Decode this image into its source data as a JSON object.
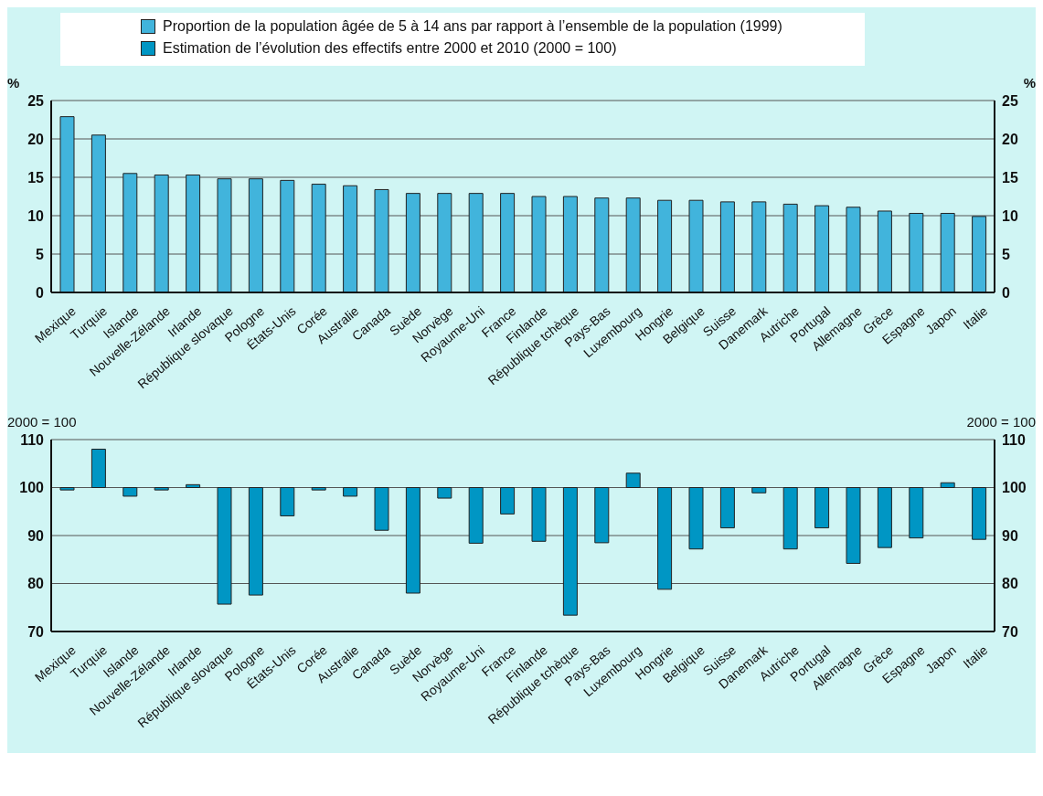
{
  "chart_data": [
    {
      "type": "bar",
      "ylabel": "%",
      "y2label": "%",
      "legend": "top",
      "grid": "y",
      "categories": [
        "Mexique",
        "Turquie",
        "Islande",
        "Nouvelle-Zélande",
        "Irlande",
        "République slovaque",
        "Pologne",
        "États-Unis",
        "Corée",
        "Australie",
        "Canada",
        "Suède",
        "Norvège",
        "Royaume-Uni",
        "France",
        "Finlande",
        "République tchèque",
        "Pays-Bas",
        "Luxembourg",
        "Hongrie",
        "Belgique",
        "Suisse",
        "Danemark",
        "Autriche",
        "Portugal",
        "Allemagne",
        "Grèce",
        "Espagne",
        "Japon",
        "Italie"
      ],
      "series": [
        {
          "name": "Proportion de la population âgée de 5 à 14 ans par rapport à l’ensemble de la population (1999)",
          "color": "#41b4dc",
          "values": [
            22.9,
            20.5,
            15.5,
            15.3,
            15.3,
            14.8,
            14.8,
            14.6,
            14.1,
            13.9,
            13.4,
            12.9,
            12.9,
            12.9,
            12.9,
            12.5,
            12.5,
            12.3,
            12.3,
            12.0,
            12.0,
            11.8,
            11.8,
            11.5,
            11.3,
            11.1,
            10.6,
            10.3,
            10.3,
            9.9
          ]
        }
      ],
      "ylim": [
        0,
        25
      ],
      "yticks": [
        0,
        5,
        10,
        15,
        20,
        25
      ],
      "y2lim": [
        0,
        25
      ],
      "y2ticks": [
        0,
        5,
        10,
        15,
        20,
        25
      ]
    },
    {
      "type": "bar",
      "ylabel": "2000 = 100",
      "y2label": "2000 = 100",
      "legend": "top",
      "grid": "y",
      "categories": [
        "Mexique",
        "Turquie",
        "Islande",
        "Nouvelle-Zélande",
        "Irlande",
        "République slovaque",
        "Pologne",
        "États-Unis",
        "Corée",
        "Australie",
        "Canada",
        "Suède",
        "Norvège",
        "Royaume-Uni",
        "France",
        "Finlande",
        "République tchèque",
        "Pays-Bas",
        "Luxembourg",
        "Hongrie",
        "Belgique",
        "Suisse",
        "Danemark",
        "Autriche",
        "Portugal",
        "Allemagne",
        "Grèce",
        "Espagne",
        "Japon",
        "Italie"
      ],
      "series": [
        {
          "name": "Estimation de l’évolution des effectifs entre 2000 et 2010 (2000 = 100)",
          "color": "#0096c4",
          "values": [
            -0.5,
            8.0,
            -1.8,
            -0.5,
            0.6,
            -24.3,
            -22.4,
            -5.9,
            -0.5,
            -1.8,
            -8.9,
            -22.0,
            -2.2,
            -11.6,
            -5.5,
            -11.2,
            -26.6,
            -11.5,
            3.0,
            -21.2,
            -12.8,
            -8.4,
            -1.1,
            -12.8,
            -8.4,
            -15.8,
            -12.5,
            -10.5,
            1.0,
            -10.8
          ],
          "base": [
            100,
            100,
            100,
            100,
            100,
            100,
            100,
            100,
            100,
            100,
            100,
            100,
            100,
            100,
            100,
            100,
            100,
            100,
            100,
            100,
            100,
            100,
            100,
            100,
            100,
            100,
            100,
            100,
            100,
            100
          ]
        }
      ],
      "ylim": [
        70,
        110
      ],
      "yticks": [
        70,
        80,
        90,
        100,
        110
      ],
      "y2lim": [
        70,
        110
      ],
      "y2ticks": [
        70,
        80,
        90,
        100,
        110
      ]
    }
  ]
}
